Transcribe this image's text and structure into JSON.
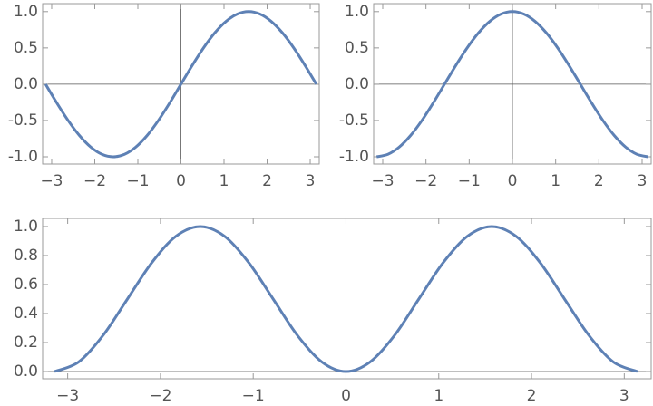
{
  "chart_data": [
    {
      "type": "line",
      "color": "#5e81b5",
      "x": [
        -3.142,
        -2.88,
        -2.618,
        -2.356,
        -2.094,
        -1.833,
        -1.571,
        -1.309,
        -1.047,
        -0.785,
        -0.524,
        -0.262,
        0,
        0.262,
        0.524,
        0.785,
        1.047,
        1.309,
        1.571,
        1.833,
        2.094,
        2.356,
        2.618,
        2.88,
        3.142
      ],
      "values": [
        0,
        -0.259,
        -0.5,
        -0.707,
        -0.866,
        -0.966,
        -1,
        -0.966,
        -0.866,
        -0.707,
        -0.5,
        -0.259,
        0,
        0.259,
        0.5,
        0.707,
        0.866,
        0.966,
        1,
        0.966,
        0.866,
        0.707,
        0.5,
        0.259,
        0
      ],
      "xlim": [
        -3.21,
        3.21
      ],
      "ylim": [
        -1.1,
        1.11
      ],
      "xticks": [
        {
          "value": -3,
          "label": "−3"
        },
        {
          "value": -2,
          "label": "−2"
        },
        {
          "value": -1,
          "label": "−1"
        },
        0,
        1,
        2,
        3
      ],
      "yticks": [
        {
          "value": -1,
          "label": "-1.0"
        },
        {
          "value": -0.5,
          "label": "-0.5"
        },
        {
          "value": 0,
          "label": "0.0"
        },
        0.5,
        {
          "value": 1,
          "label": "1.0"
        }
      ]
    },
    {
      "type": "line",
      "color": "#5e81b5",
      "x": [
        -3.142,
        -2.88,
        -2.618,
        -2.356,
        -2.094,
        -1.833,
        -1.571,
        -1.309,
        -1.047,
        -0.785,
        -0.524,
        -0.262,
        0,
        0.262,
        0.524,
        0.785,
        1.047,
        1.309,
        1.571,
        1.833,
        2.094,
        2.356,
        2.618,
        2.88,
        3.142
      ],
      "values": [
        -1,
        -0.966,
        -0.866,
        -0.707,
        -0.5,
        -0.259,
        0,
        0.259,
        0.5,
        0.707,
        0.866,
        0.966,
        1,
        0.966,
        0.866,
        0.707,
        0.5,
        0.259,
        0,
        -0.259,
        -0.5,
        -0.707,
        -0.866,
        -0.966,
        -1
      ],
      "xlim": [
        -3.21,
        3.21
      ],
      "ylim": [
        -1.1,
        1.11
      ],
      "xticks": [
        {
          "value": -3,
          "label": "−3"
        },
        {
          "value": -2,
          "label": "−2"
        },
        {
          "value": -1,
          "label": "−1"
        },
        0,
        1,
        2,
        3
      ],
      "yticks": [
        {
          "value": -1,
          "label": "-1.0"
        },
        {
          "value": -0.5,
          "label": "-0.5"
        },
        {
          "value": 0,
          "label": "0.0"
        },
        0.5,
        {
          "value": 1,
          "label": "1.0"
        }
      ]
    },
    {
      "type": "line",
      "color": "#5e81b5",
      "x": [
        -3.142,
        -2.88,
        -2.618,
        -2.356,
        -2.094,
        -1.833,
        -1.571,
        -1.309,
        -1.047,
        -0.785,
        -0.524,
        -0.262,
        0,
        0.262,
        0.524,
        0.785,
        1.047,
        1.309,
        1.571,
        1.833,
        2.094,
        2.356,
        2.618,
        2.88,
        3.142
      ],
      "values": [
        0,
        0.067,
        0.25,
        0.5,
        0.75,
        0.933,
        1,
        0.933,
        0.75,
        0.5,
        0.25,
        0.067,
        0,
        0.067,
        0.25,
        0.5,
        0.75,
        0.933,
        1,
        0.933,
        0.75,
        0.5,
        0.25,
        0.067,
        0
      ],
      "xlim": [
        -3.27,
        3.29
      ],
      "ylim": [
        -0.05,
        1.056
      ],
      "xticks": [
        {
          "value": -3,
          "label": "−3"
        },
        {
          "value": -2,
          "label": "−2"
        },
        {
          "value": -1,
          "label": "−1"
        },
        0,
        1,
        2,
        3
      ],
      "yticks": [
        {
          "value": 0,
          "label": "0.0"
        },
        0.2,
        0.4,
        0.6,
        0.8,
        {
          "value": 1,
          "label": "1.0"
        }
      ]
    }
  ]
}
